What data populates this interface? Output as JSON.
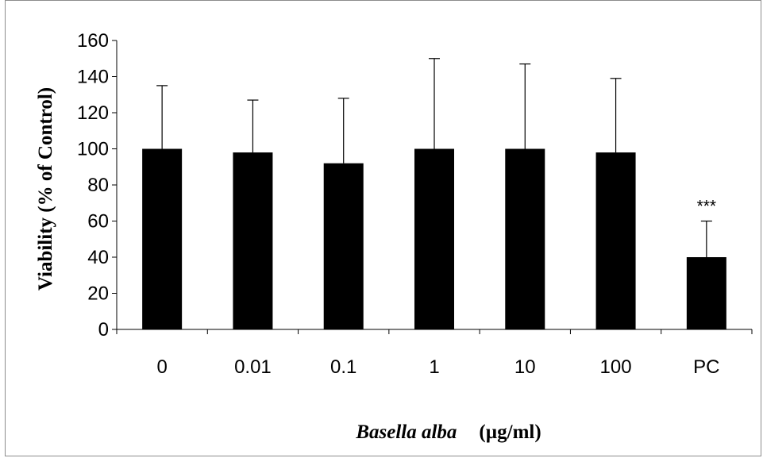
{
  "chart_data": {
    "type": "bar",
    "categories": [
      "0",
      "0.01",
      "0.1",
      "1",
      "10",
      "100",
      "PC"
    ],
    "values": [
      100,
      98,
      92,
      100,
      100,
      98,
      40
    ],
    "errors": [
      35,
      29,
      36,
      50,
      47,
      41,
      20
    ],
    "title": "",
    "xlabel_italic": "Basella alba",
    "xlabel_unit": "(µg/ml)",
    "ylabel": "Viability (% of Control)",
    "ylim": [
      0,
      160
    ],
    "yticks": [
      0,
      20,
      40,
      60,
      80,
      100,
      120,
      140,
      160
    ],
    "annotations": [
      {
        "category": "PC",
        "text": "***"
      }
    ],
    "grid": false,
    "bar_color": "#000000"
  }
}
